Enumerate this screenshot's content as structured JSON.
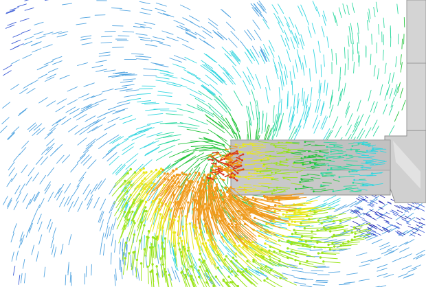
{
  "scene": {
    "kind": "cfd-velocity-vector-field",
    "background_color": "#ffffff",
    "geometry_color": "#c9c9c9",
    "geometry_edge_color": "#8a8a8a",
    "colormap": [
      "#1a1aa8",
      "#3b5bd6",
      "#4fa3e0",
      "#33d6e0",
      "#2fd9a0",
      "#22c43a",
      "#9be51b",
      "#e8e81a",
      "#f09a1a",
      "#d83a1a",
      "#8a1a3a"
    ],
    "components": [
      {
        "name": "inlet-pipe",
        "shape": "horizontal-duct"
      },
      {
        "name": "vertical-wall",
        "shape": "tall-rectangle"
      },
      {
        "name": "elbow-junction",
        "shape": "bend"
      }
    ]
  }
}
